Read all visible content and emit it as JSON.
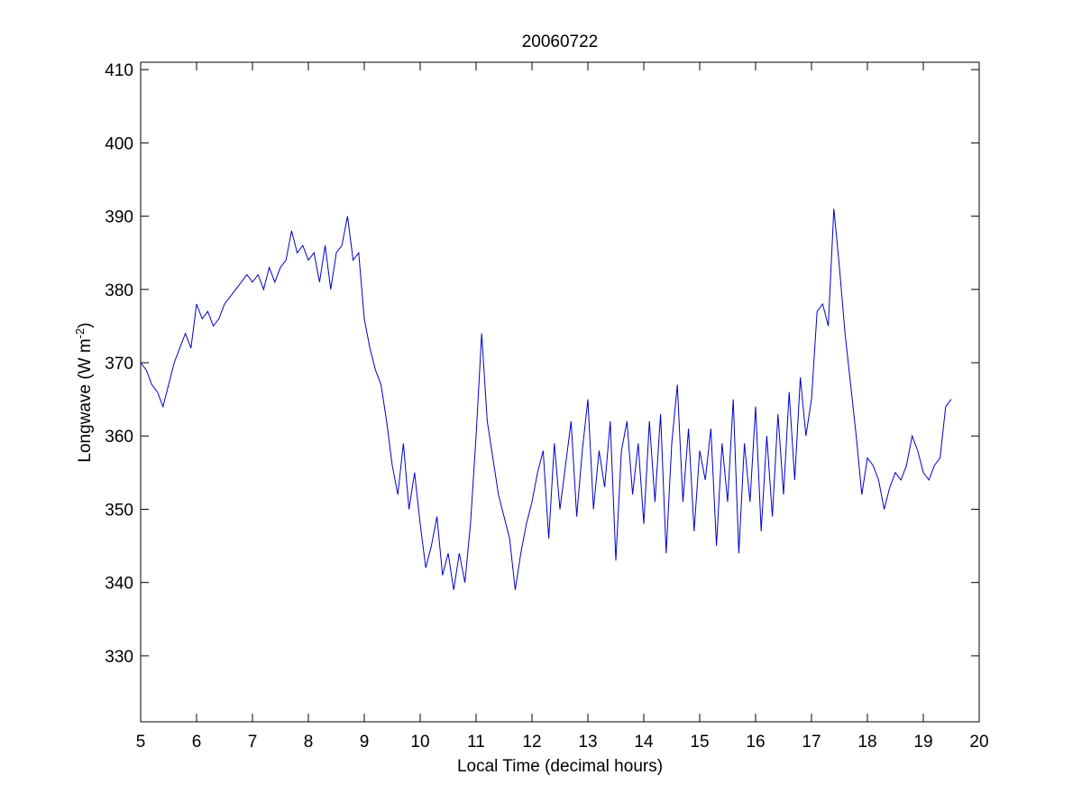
{
  "chart_data": {
    "type": "line",
    "title": "20060722",
    "xlabel": "Local Time (decimal hours)",
    "ylabel_main": "Longwave (W m",
    "ylabel_sup": "-2",
    "ylabel_close": ")",
    "xlim": [
      5,
      20
    ],
    "ylim": [
      321,
      411
    ],
    "xticks": [
      5,
      6,
      7,
      8,
      9,
      10,
      11,
      12,
      13,
      14,
      15,
      16,
      17,
      18,
      19,
      20
    ],
    "yticks": [
      330,
      340,
      350,
      360,
      370,
      380,
      390,
      400,
      410
    ],
    "grid": false,
    "line_color": "#0000cc",
    "series": [
      {
        "x": [
          5.0,
          5.1,
          5.2,
          5.3,
          5.4,
          5.5,
          5.6,
          5.7,
          5.8,
          5.9,
          6.0,
          6.1,
          6.2,
          6.3,
          6.4,
          6.5,
          6.6,
          6.7,
          6.8,
          6.9,
          7.0,
          7.1,
          7.2,
          7.3,
          7.4,
          7.5,
          7.6,
          7.7,
          7.8,
          7.9,
          8.0,
          8.1,
          8.2,
          8.3,
          8.4,
          8.5,
          8.6,
          8.7,
          8.8,
          8.9,
          9.0,
          9.1,
          9.2,
          9.3,
          9.4,
          9.5,
          9.6,
          9.7,
          9.8,
          9.9,
          10.0,
          10.1,
          10.2,
          10.3,
          10.4,
          10.5,
          10.6,
          10.7,
          10.8,
          10.9,
          11.0,
          11.1,
          11.2,
          11.3,
          11.4,
          11.5,
          11.6,
          11.7,
          11.8,
          11.9,
          12.0,
          12.1,
          12.2,
          12.3,
          12.4,
          12.5,
          12.6,
          12.7,
          12.8,
          12.9,
          13.0,
          13.1,
          13.2,
          13.3,
          13.4,
          13.5,
          13.6,
          13.7,
          13.8,
          13.9,
          14.0,
          14.1,
          14.2,
          14.3,
          14.4,
          14.5,
          14.6,
          14.7,
          14.8,
          14.9,
          15.0,
          15.1,
          15.2,
          15.3,
          15.4,
          15.5,
          15.6,
          15.7,
          15.8,
          15.9,
          16.0,
          16.1,
          16.2,
          16.3,
          16.4,
          16.5,
          16.6,
          16.7,
          16.8,
          16.9,
          17.0,
          17.1,
          17.2,
          17.3,
          17.4,
          17.5,
          17.6,
          17.7,
          17.8,
          17.9,
          18.0,
          18.1,
          18.2,
          18.3,
          18.4,
          18.5,
          18.6,
          18.7,
          18.8,
          18.9,
          19.0,
          19.1,
          19.2,
          19.3,
          19.4,
          19.5
        ],
        "y": [
          370,
          369,
          367,
          366,
          364,
          367,
          370,
          372,
          374,
          372,
          378,
          376,
          377,
          375,
          376,
          378,
          379,
          380,
          381,
          382,
          381,
          382,
          380,
          383,
          381,
          383,
          384,
          388,
          385,
          386,
          384,
          385,
          381,
          386,
          380,
          385,
          386,
          390,
          384,
          385,
          376,
          372,
          369,
          367,
          362,
          356,
          352,
          359,
          350,
          355,
          348,
          342,
          345,
          349,
          341,
          344,
          339,
          344,
          340,
          348,
          360,
          374,
          362,
          357,
          352,
          349,
          346,
          339,
          344,
          348,
          351,
          355,
          358,
          346,
          359,
          350,
          356,
          362,
          349,
          358,
          365,
          350,
          358,
          353,
          362,
          343,
          358,
          362,
          352,
          359,
          348,
          362,
          351,
          363,
          344,
          359,
          367,
          351,
          361,
          347,
          358,
          354,
          361,
          345,
          359,
          351,
          365,
          344,
          359,
          351,
          364,
          347,
          360,
          349,
          363,
          352,
          366,
          354,
          368,
          360,
          365,
          377,
          378,
          375,
          391,
          383,
          374,
          367,
          360,
          352,
          357,
          356,
          354,
          350,
          353,
          355,
          354,
          356,
          360,
          358,
          355,
          354,
          356,
          357,
          364,
          365
        ]
      }
    ]
  }
}
